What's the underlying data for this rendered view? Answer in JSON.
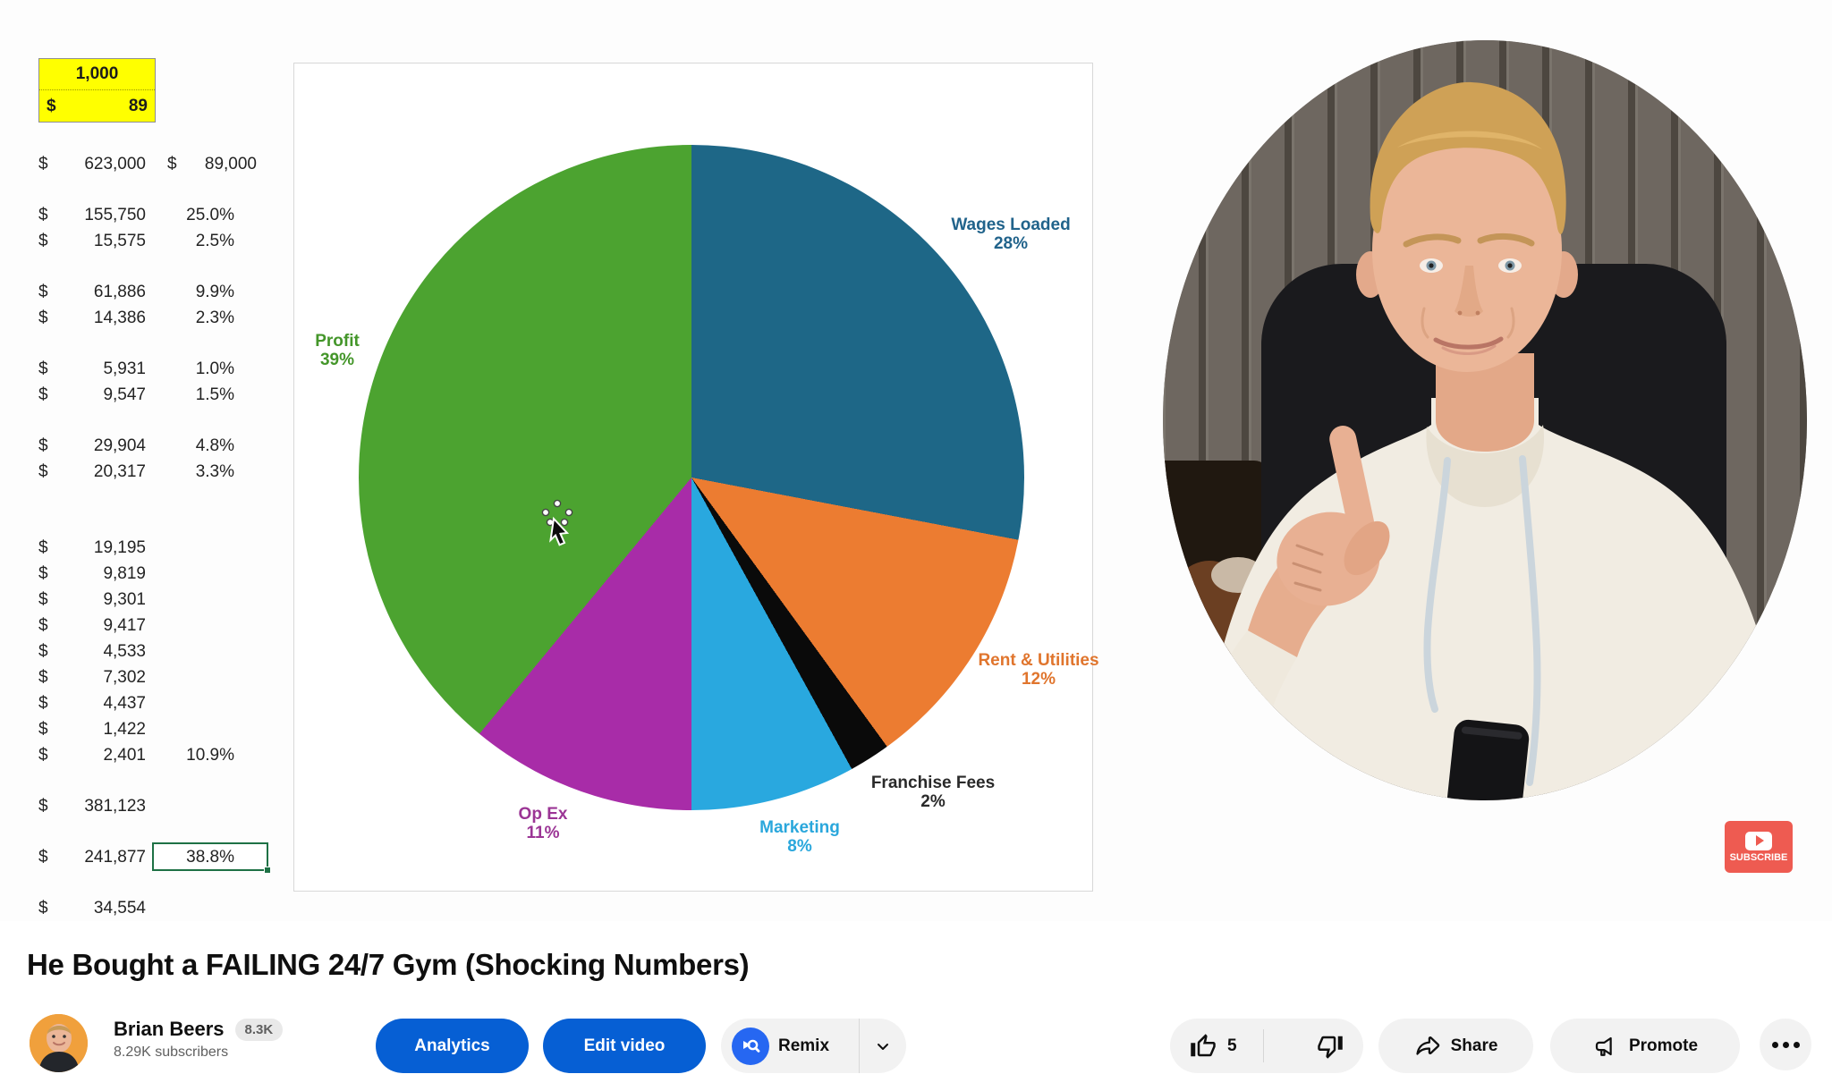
{
  "title": "He Bought a FAILING 24/7 Gym (Shocking Numbers)",
  "channel": {
    "name": "Brian Beers",
    "badge": "8.3K",
    "subscribers": "8.29K subscribers"
  },
  "actions": {
    "analytics": "Analytics",
    "edit": "Edit video",
    "remix": "Remix",
    "like_count": "5",
    "share": "Share",
    "promote": "Promote",
    "more": "..."
  },
  "video": {
    "subscribe_label": "SUBSCRIBE"
  },
  "spreadsheet": {
    "yellow_top": "1,000",
    "yellow_dollar": "$",
    "yellow_value": "89",
    "groups": [
      [
        {
          "d": "$",
          "a": "623,000",
          "d2": "$",
          "a2": "89,000"
        }
      ],
      [
        {
          "d": "$",
          "a": "155,750",
          "p": "25.0%"
        },
        {
          "d": "$",
          "a": "15,575",
          "p": "2.5%"
        }
      ],
      [
        {
          "d": "$",
          "a": "61,886",
          "p": "9.9%"
        },
        {
          "d": "$",
          "a": "14,386",
          "p": "2.3%"
        }
      ],
      [
        {
          "d": "$",
          "a": "5,931",
          "p": "1.0%"
        },
        {
          "d": "$",
          "a": "9,547",
          "p": "1.5%"
        }
      ],
      [
        {
          "d": "$",
          "a": "29,904",
          "p": "4.8%"
        },
        {
          "d": "$",
          "a": "20,317",
          "p": "3.3%"
        }
      ],
      [
        {
          "d": "$",
          "a": "19,195"
        },
        {
          "d": "$",
          "a": "9,819"
        },
        {
          "d": "$",
          "a": "9,301"
        },
        {
          "d": "$",
          "a": "9,417"
        },
        {
          "d": "$",
          "a": "4,533"
        },
        {
          "d": "$",
          "a": "7,302"
        },
        {
          "d": "$",
          "a": "4,437"
        },
        {
          "d": "$",
          "a": "1,422"
        },
        {
          "d": "$",
          "a": "2,401",
          "p": "10.9%"
        }
      ],
      [
        {
          "d": "$",
          "a": "381,123"
        }
      ],
      [
        {
          "d": "$",
          "a": "241,877",
          "p": "38.8%",
          "sel": true
        }
      ],
      [
        {
          "d": "$",
          "a": "34,554"
        }
      ]
    ]
  },
  "chart_data": {
    "type": "pie",
    "title": "",
    "legend_position": "labels-outside",
    "slices": [
      {
        "label": "Wages Loaded",
        "value": 28,
        "pct_label": "28%",
        "color": "#1E6787",
        "label_color": "#21638B"
      },
      {
        "label": "Rent & Utilities",
        "value": 12,
        "pct_label": "12%",
        "color": "#EC7C31",
        "label_color": "#E0752D"
      },
      {
        "label": "Franchise Fees",
        "value": 2,
        "pct_label": "2%",
        "color": "#0A0A0A",
        "label_color": "#2a2a2a"
      },
      {
        "label": "Marketing",
        "value": 8,
        "pct_label": "8%",
        "color": "#29A8DF",
        "label_color": "#2AA7DC"
      },
      {
        "label": "Op Ex",
        "value": 11,
        "pct_label": "11%",
        "color": "#A82CA8",
        "label_color": "#9B3595"
      },
      {
        "label": "Profit",
        "value": 39,
        "pct_label": "39%",
        "color": "#4CA330",
        "label_color": "#44962A"
      }
    ]
  },
  "colors": {
    "accent_blue": "#065FD4",
    "pill_gray": "#f2f2f2",
    "subscribe_red": "#EE5B51",
    "cell_yellow": "#FFFF00",
    "selection_green": "#1E7145",
    "remix_blue": "#2667F2"
  }
}
